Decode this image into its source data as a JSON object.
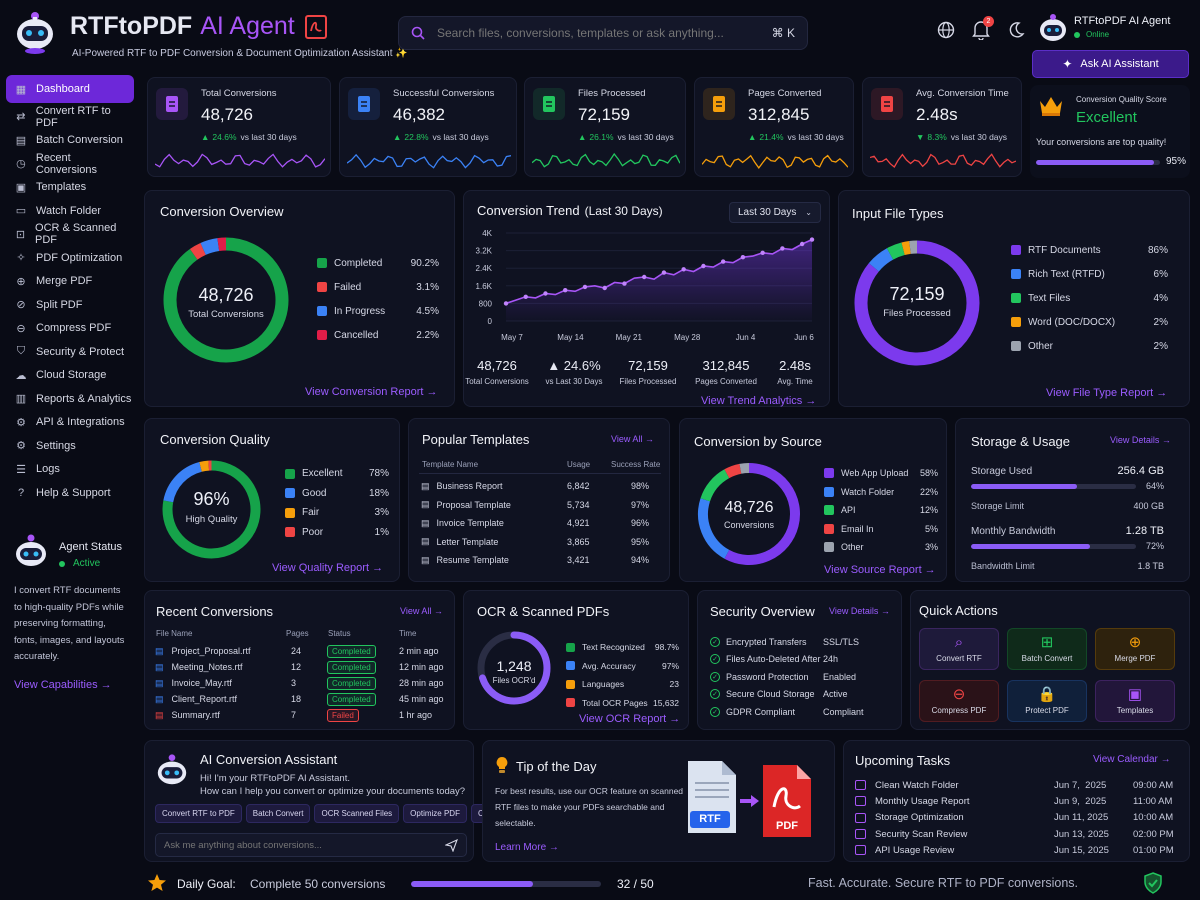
{
  "app": {
    "name": "RTFtoPDF",
    "name_accent": "AI Agent",
    "subtitle": "AI-Powered RTF to PDF Conversion & Document Optimization Assistant ✨"
  },
  "search": {
    "placeholder": "Search files, conversions, templates or ask anything...",
    "shortcut": "⌘ K"
  },
  "header": {
    "notification_count": "2",
    "user_name": "RTFtoPDF AI Agent",
    "user_status": "Online",
    "ask_button": "Ask AI Assistant"
  },
  "sidebar": {
    "items": [
      {
        "label": "Dashboard",
        "icon": "dashboard-icon"
      },
      {
        "label": "Convert RTF to PDF",
        "icon": "convert-icon"
      },
      {
        "label": "Batch Conversion",
        "icon": "batch-icon"
      },
      {
        "label": "Recent Conversions",
        "icon": "clock-icon"
      },
      {
        "label": "Templates",
        "icon": "templates-icon"
      },
      {
        "label": "Watch Folder",
        "icon": "folder-icon"
      },
      {
        "label": "OCR & Scanned PDF",
        "icon": "ocr-icon"
      },
      {
        "label": "PDF Optimization",
        "icon": "optimize-icon"
      },
      {
        "label": "Merge PDF",
        "icon": "merge-icon"
      },
      {
        "label": "Split PDF",
        "icon": "split-icon"
      },
      {
        "label": "Compress PDF",
        "icon": "compress-icon"
      },
      {
        "label": "Security & Protect",
        "icon": "shield-icon"
      },
      {
        "label": "Cloud Storage",
        "icon": "cloud-icon"
      },
      {
        "label": "Reports & Analytics",
        "icon": "reports-icon"
      },
      {
        "label": "API & Integrations",
        "icon": "api-icon"
      },
      {
        "label": "Settings",
        "icon": "gear-icon"
      },
      {
        "label": "Logs",
        "icon": "logs-icon"
      },
      {
        "label": "Help & Support",
        "icon": "help-icon"
      }
    ],
    "agent_status_label": "Agent Status",
    "agent_status_value": "Active",
    "agent_desc": "I convert RTF documents to high-quality PDFs while preserving formatting, fonts, images, and layouts accurately.",
    "capabilities_link": "View Capabilities →"
  },
  "stats": [
    {
      "label": "Total Conversions",
      "value": "48,726",
      "delta": "24.6%",
      "suffix": "vs last 30 days",
      "color": "#a855f7",
      "icon": "document-icon"
    },
    {
      "label": "Successful Conversions",
      "value": "46,382",
      "delta": "22.8%",
      "suffix": "vs last 30 days",
      "color": "#3b82f6",
      "icon": "check-badge-icon"
    },
    {
      "label": "Files Processed",
      "value": "72,159",
      "delta": "26.1%",
      "suffix": "vs last 30 days",
      "color": "#22c55e",
      "icon": "file-icon"
    },
    {
      "label": "Pages Converted",
      "value": "312,845",
      "delta": "21.4%",
      "suffix": "vs last 30 days",
      "color": "#f59e0b",
      "icon": "pages-icon"
    },
    {
      "label": "Avg. Conversion Time",
      "value": "2.48s",
      "delta": "8.3%",
      "suffix": "vs last 30 days",
      "color": "#ef4444",
      "icon": "timer-icon",
      "down": true
    }
  ],
  "quality_score": {
    "label": "Conversion Quality Score",
    "value": "Excellent",
    "note": "Your conversions are top quality!",
    "percent": "95%",
    "fill": 0.95
  },
  "overview": {
    "title": "Conversion Overview",
    "center_value": "48,726",
    "center_label": "Total Conversions",
    "link": "View Conversion Report →",
    "items": [
      {
        "label": "Completed",
        "value": "90.2%",
        "pct": 90.2,
        "color": "#16a34a"
      },
      {
        "label": "Failed",
        "value": "3.1%",
        "pct": 3.1,
        "color": "#ef4444"
      },
      {
        "label": "In Progress",
        "value": "4.5%",
        "pct": 4.5,
        "color": "#3b82f6"
      },
      {
        "label": "Cancelled",
        "value": "2.2%",
        "pct": 2.2,
        "color": "#e11d48"
      }
    ]
  },
  "trend": {
    "title": "Conversion Trend",
    "title_sub": "(Last 30 Days)",
    "range": "Last 30 Days",
    "link": "View Trend Analytics →",
    "stats": [
      {
        "value": "48,726",
        "label": "Total Conversions"
      },
      {
        "value": "▲ 24.6%",
        "label": "vs Last 30 Days"
      },
      {
        "value": "72,159",
        "label": "Files Processed"
      },
      {
        "value": "312,845",
        "label": "Pages Converted"
      },
      {
        "value": "2.48s",
        "label": "Avg. Time"
      }
    ]
  },
  "chart_data": {
    "type": "line",
    "title": "Conversion Trend (Last 30 Days)",
    "x": [
      "May 7",
      "",
      "",
      "",
      "",
      "",
      "",
      "May 14",
      "",
      "",
      "",
      "",
      "",
      "",
      "May 21",
      "",
      "",
      "",
      "",
      "",
      "",
      "May 28",
      "",
      "",
      "",
      "",
      "",
      "",
      "Jun 4",
      "",
      "",
      "Jun 6"
    ],
    "xticks": [
      "May 7",
      "May 14",
      "May 21",
      "May 28",
      "Jun 4",
      "Jun 6"
    ],
    "yticks": [
      "4K",
      "3.2K",
      "2.4K",
      "1.6K",
      "800",
      "0"
    ],
    "ylim": [
      0,
      4000
    ],
    "series": [
      {
        "values": [
          800,
          950,
          1100,
          1050,
          1250,
          1200,
          1400,
          1350,
          1550,
          1600,
          1500,
          1750,
          1700,
          1950,
          2000,
          1900,
          2200,
          2100,
          2350,
          2250,
          2500,
          2450,
          2700,
          2650,
          2900,
          2950,
          3100,
          3050,
          3300,
          3250,
          3500,
          3700
        ]
      }
    ],
    "xlabel": "",
    "ylabel": ""
  },
  "file_types": {
    "title": "Input File Types",
    "center_value": "72,159",
    "center_label": "Files Processed",
    "link": "View File Type Report →",
    "items": [
      {
        "label": "RTF Documents",
        "value": "86%",
        "pct": 86,
        "color": "#7c3aed"
      },
      {
        "label": "Rich Text (RTFD)",
        "value": "6%",
        "pct": 6,
        "color": "#3b82f6"
      },
      {
        "label": "Text Files",
        "value": "4%",
        "pct": 4,
        "color": "#22c55e"
      },
      {
        "label": "Word (DOC/DOCX)",
        "value": "2%",
        "pct": 2,
        "color": "#f59e0b"
      },
      {
        "label": "Other",
        "value": "2%",
        "pct": 2,
        "color": "#9ca3af"
      }
    ]
  },
  "quality": {
    "title": "Conversion Quality",
    "center_value": "96%",
    "center_label": "High Quality",
    "link": "View Quality Report →",
    "items": [
      {
        "label": "Excellent",
        "value": "78%",
        "pct": 78,
        "color": "#16a34a"
      },
      {
        "label": "Good",
        "value": "18%",
        "pct": 18,
        "color": "#3b82f6"
      },
      {
        "label": "Fair",
        "value": "3%",
        "pct": 3,
        "color": "#f59e0b"
      },
      {
        "label": "Poor",
        "value": "1%",
        "pct": 1,
        "color": "#ef4444"
      }
    ]
  },
  "templates": {
    "title": "Popular Templates",
    "link": "View All →",
    "col_name": "Template Name",
    "col_usage": "Usage",
    "col_rate": "Success Rate",
    "rows": [
      {
        "name": "Business Report",
        "usage": "6,842",
        "rate": "98%"
      },
      {
        "name": "Proposal Template",
        "usage": "5,734",
        "rate": "97%"
      },
      {
        "name": "Invoice Template",
        "usage": "4,921",
        "rate": "96%"
      },
      {
        "name": "Letter Template",
        "usage": "3,865",
        "rate": "95%"
      },
      {
        "name": "Resume Template",
        "usage": "3,421",
        "rate": "94%"
      }
    ]
  },
  "source": {
    "title": "Conversion by Source",
    "center_value": "48,726",
    "center_label": "Conversions",
    "link": "View Source Report →",
    "items": [
      {
        "label": "Web App Upload",
        "value": "58%",
        "pct": 58,
        "color": "#7c3aed"
      },
      {
        "label": "Watch Folder",
        "value": "22%",
        "pct": 22,
        "color": "#3b82f6"
      },
      {
        "label": "API",
        "value": "12%",
        "pct": 12,
        "color": "#22c55e"
      },
      {
        "label": "Email In",
        "value": "5%",
        "pct": 5,
        "color": "#ef4444"
      },
      {
        "label": "Other",
        "value": "3%",
        "pct": 3,
        "color": "#9ca3af"
      }
    ]
  },
  "storage": {
    "title": "Storage & Usage",
    "link": "View Details →",
    "used_label": "Storage Used",
    "used_value": "256.4 GB",
    "used_pct": "64%",
    "used_fill": 0.64,
    "limit_label": "Storage Limit",
    "limit_value": "400 GB",
    "bw_label": "Monthly Bandwidth",
    "bw_value": "1.28 TB",
    "bw_pct": "72%",
    "bw_fill": 0.72,
    "bw_limit_label": "Bandwidth Limit",
    "bw_limit_value": "1.8 TB"
  },
  "recent": {
    "title": "Recent Conversions",
    "link": "View All →",
    "col_file": "File Name",
    "col_pages": "Pages",
    "col_status": "Status",
    "col_time": "Time",
    "rows": [
      {
        "file": "Project_Proposal.rtf",
        "pages": "24",
        "status": "Completed",
        "ok": true,
        "time": "2 min ago"
      },
      {
        "file": "Meeting_Notes.rtf",
        "pages": "12",
        "status": "Completed",
        "ok": true,
        "time": "12 min ago"
      },
      {
        "file": "Invoice_May.rtf",
        "pages": "3",
        "status": "Completed",
        "ok": true,
        "time": "28 min ago"
      },
      {
        "file": "Client_Report.rtf",
        "pages": "18",
        "status": "Completed",
        "ok": true,
        "time": "45 min ago"
      },
      {
        "file": "Summary.rtf",
        "pages": "7",
        "status": "Failed",
        "ok": false,
        "time": "1 hr ago"
      }
    ]
  },
  "ocr": {
    "title": "OCR & Scanned PDFs",
    "center_value": "1,248",
    "center_label": "Files OCR'd",
    "link": "View OCR Report →",
    "ring_fill": 0.7,
    "items": [
      {
        "label": "Text Recognized",
        "value": "98.7%",
        "color": "#16a34a"
      },
      {
        "label": "Avg. Accuracy",
        "value": "97%",
        "color": "#3b82f6"
      },
      {
        "label": "Languages",
        "value": "23",
        "color": "#f59e0b"
      },
      {
        "label": "Total OCR Pages",
        "value": "15,632",
        "color": "#ef4444"
      }
    ]
  },
  "security": {
    "title": "Security Overview",
    "link": "View Details →",
    "rows": [
      {
        "label": "Encrypted Transfers",
        "value": "SSL/TLS"
      },
      {
        "label": "Files Auto-Deleted After",
        "value": "24h"
      },
      {
        "label": "Password Protection",
        "value": "Enabled"
      },
      {
        "label": "Secure Cloud Storage",
        "value": "Active"
      },
      {
        "label": "GDPR Compliant",
        "value": "Compliant"
      }
    ]
  },
  "quick": {
    "title": "Quick Actions",
    "items": [
      {
        "label": "Convert RTF",
        "icon": "search-icon",
        "bg": "#1e1a3a",
        "fg": "#a855f7"
      },
      {
        "label": "Batch Convert",
        "icon": "grid-icon",
        "bg": "#0f2a1a",
        "fg": "#22c55e"
      },
      {
        "label": "Merge PDF",
        "icon": "merge-icon",
        "bg": "#2e220d",
        "fg": "#f59e0b"
      },
      {
        "label": "Compress PDF",
        "icon": "compress-icon",
        "bg": "#2a1218",
        "fg": "#ef4444"
      },
      {
        "label": "Protect PDF",
        "icon": "lock-icon",
        "bg": "#10203a",
        "fg": "#3b82f6"
      },
      {
        "label": "Templates",
        "icon": "templates-icon",
        "bg": "#22163a",
        "fg": "#a855f7"
      }
    ]
  },
  "assistant": {
    "title": "AI Conversion Assistant",
    "greeting": "Hi! I'm your RTFtoPDF AI Assistant.",
    "question": "How can I help you convert or optimize your documents today?",
    "chips": [
      "Convert RTF to PDF",
      "Batch Convert",
      "OCR Scanned Files",
      "Optimize PDF",
      "Create Template"
    ],
    "input_placeholder": "Ask me anything about conversions..."
  },
  "tip": {
    "title": "Tip of the Day",
    "text": "For best results, use our OCR feature on scanned RTF files to make your PDFs searchable and selectable.",
    "link": "Learn More →",
    "rtf_label": "RTF",
    "pdf_label": "PDF"
  },
  "tasks": {
    "title": "Upcoming Tasks",
    "link": "View Calendar →",
    "rows": [
      {
        "label": "Clean Watch Folder",
        "date": "Jun 7,  2025",
        "time": "09:00 AM"
      },
      {
        "label": "Monthly Usage Report",
        "date": "Jun 9,  2025",
        "time": "11:00 AM"
      },
      {
        "label": "Storage Optimization",
        "date": "Jun 11, 2025",
        "time": "10:00 AM"
      },
      {
        "label": "Security Scan Review",
        "date": "Jun 13, 2025",
        "time": "02:00 PM"
      },
      {
        "label": "API Usage Review",
        "date": "Jun 15, 2025",
        "time": "01:00 PM"
      }
    ]
  },
  "footer": {
    "goal_label": "Daily Goal:",
    "goal_text": "Complete 50 conversions",
    "goal_progress": "32 / 50",
    "goal_fill": 0.64,
    "tagline": "Fast. Accurate. Secure RTF to PDF conversions."
  }
}
